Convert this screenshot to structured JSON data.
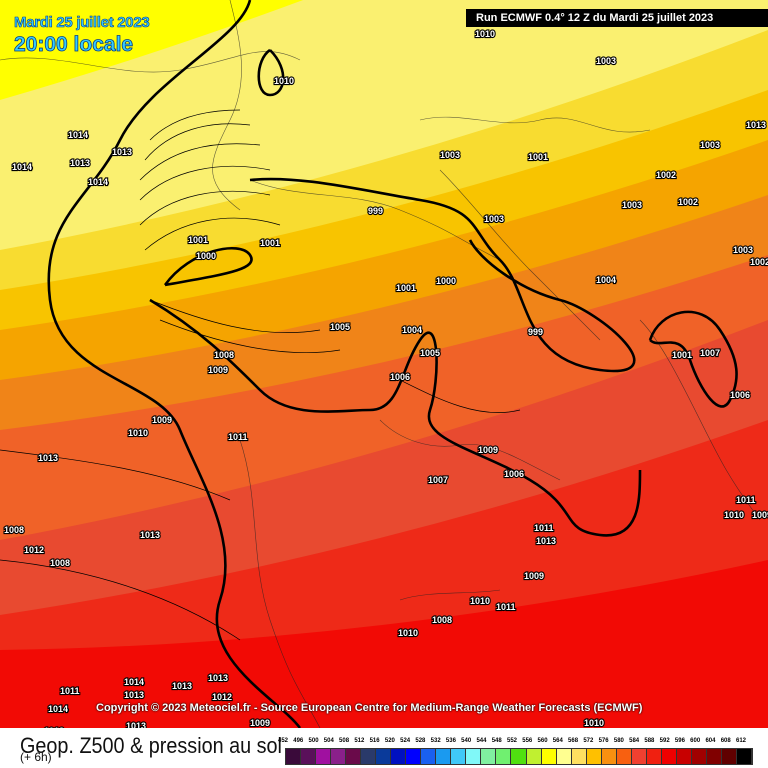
{
  "header": {
    "date": "Mardi 25 juillet 2023",
    "time": "20:00 locale",
    "run": "Run ECMWF 0.4° 12 Z du Mardi 25 juillet 2023"
  },
  "copyright": "Copyright © 2023 Meteociel.fr - Source European Centre for Medium-Range Weather Forecasts (ECMWF)",
  "footer": {
    "title": "Geop. Z500 & pression au sol",
    "subtitle": "(+ 6h)"
  },
  "legend": {
    "labels": [
      "452",
      "496",
      "500",
      "504",
      "508",
      "512",
      "516",
      "520",
      "524",
      "528",
      "532",
      "536",
      "540",
      "544",
      "548",
      "552",
      "556",
      "560",
      "564",
      "568",
      "572",
      "576",
      "580",
      "584",
      "588",
      "592",
      "596",
      "600",
      "604",
      "608",
      "612"
    ],
    "colors": [
      "#3a0a3a",
      "#5a105a",
      "#a010a0",
      "#8a208a",
      "#6a0a4a",
      "#2a3a6a",
      "#0a3a9a",
      "#0010c0",
      "#0000ff",
      "#1a60f0",
      "#1a9af0",
      "#40c8f8",
      "#80f8f8",
      "#80f0a0",
      "#70f070",
      "#50e010",
      "#c0f030",
      "#ffff00",
      "#ffff90",
      "#ffe060",
      "#ffc000",
      "#f89010",
      "#f86010",
      "#f04030",
      "#f02010",
      "#f00000",
      "#c80000",
      "#a00000",
      "#800000",
      "#600000",
      "#000000"
    ]
  },
  "map": {
    "band_colors": [
      "#ffff00",
      "#faf070",
      "#f8dc30",
      "#f8c400",
      "#f5a400",
      "#f08418",
      "#f06228",
      "#e84a30",
      "#ee2a18",
      "#f20a05"
    ],
    "pressure_labels": [
      "1010",
      "1003",
      "1010",
      "1014",
      "1013",
      "1013",
      "1014",
      "1014",
      "1013",
      "1003",
      "1001",
      "1003",
      "1002",
      "1003",
      "1002",
      "1003",
      "1001",
      "999",
      "1001",
      "1000",
      "1003",
      "1002",
      "1004",
      "1001",
      "1000",
      "1005",
      "1004",
      "1005",
      "999",
      "1001",
      "1008",
      "1009",
      "1006",
      "1007",
      "1006",
      "1009",
      "1010",
      "1011",
      "1009",
      "1013",
      "1007",
      "1006",
      "1008",
      "1013",
      "1012",
      "1011",
      "1013",
      "1008",
      "1009",
      "1010",
      "1011",
      "1008",
      "1010",
      "1011",
      "1010",
      "1009",
      "1011",
      "1014",
      "1014",
      "1013",
      "1013",
      "1013",
      "1012",
      "1013",
      "1012",
      "1010",
      "1009"
    ]
  }
}
